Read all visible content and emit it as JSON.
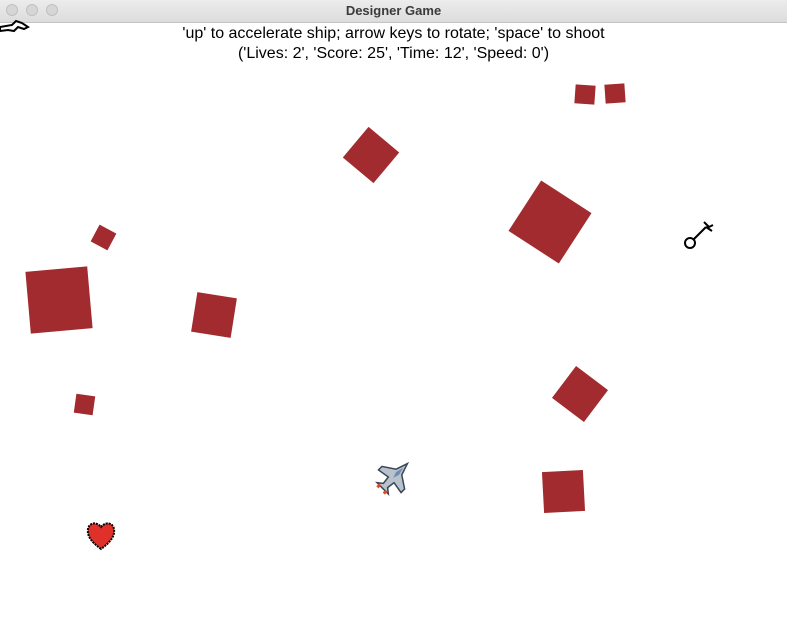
{
  "window": {
    "title": "Designer Game"
  },
  "hud": {
    "instructions": "'up' to accelerate ship; arrow keys to rotate; 'space' to shoot",
    "status": "('Lives: 2', 'Score: 25', 'Time: 12', 'Speed: 0')"
  },
  "stats": {
    "lives": 2,
    "score": 25,
    "time": 12,
    "speed": 0
  },
  "colors": {
    "asteroid": "#a12b2e",
    "heart": "#e0302a",
    "background": "#ffffff"
  },
  "icons": {
    "ship": "spaceship-icon",
    "heart": "heart-icon",
    "wrench": "wrench-icon"
  }
}
